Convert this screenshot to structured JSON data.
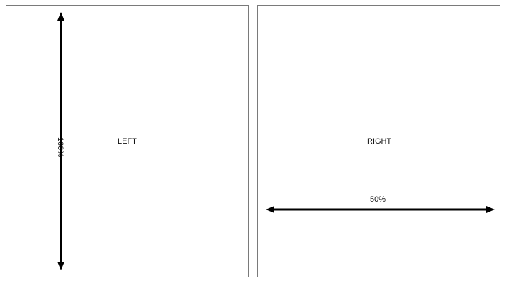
{
  "panels": {
    "left": {
      "label": "LEFT",
      "dimension_label": "100%",
      "dimension_value_percent": 100,
      "arrow_orientation": "vertical"
    },
    "right": {
      "label": "RIGHT",
      "dimension_label": "50%",
      "dimension_value_percent": 50,
      "arrow_orientation": "horizontal"
    }
  },
  "colors": {
    "border": "#7a7a7a",
    "arrow": "#000000",
    "text": "#111111",
    "background": "#ffffff"
  }
}
